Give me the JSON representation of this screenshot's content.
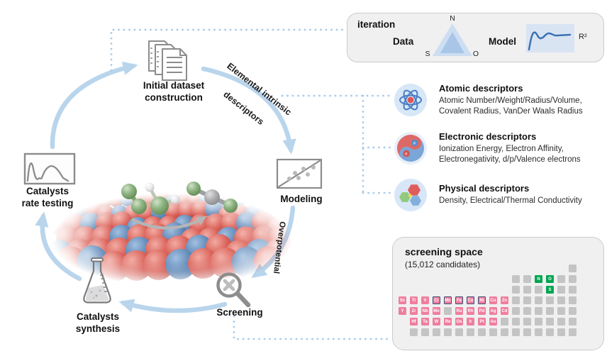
{
  "colors": {
    "arrow_blue": "#b9d5ec",
    "dotted_blue": "#a6c9e8",
    "panel_bg": "#f0f0f1",
    "pink_cell": "#ef7e9e",
    "green_cell": "#00a551",
    "grey_cell": "#c4c4c4",
    "outline_navy": "#3d4f74"
  },
  "cycle": {
    "initial_dataset": {
      "line1": "Initial dataset",
      "line2": "construction"
    },
    "modeling": {
      "label": "Modeling"
    },
    "screening": {
      "label": "Screening"
    },
    "synthesis": {
      "line1": "Catalysts",
      "line2": "synthesis"
    },
    "rate_testing": {
      "line1": "Catalysts",
      "line2": "rate testing"
    },
    "edge_to_modeling_line1": "Elemental intrinsic",
    "edge_to_modeling_line2": "descriptors",
    "edge_to_screening": "Overpotential"
  },
  "iteration_box": {
    "title": "iteration",
    "data_label": "Data",
    "model_label": "Model",
    "triangle_top": "N",
    "triangle_bottom_left": "S",
    "triangle_bottom_right": "O",
    "r2_label": "R²"
  },
  "descriptors": [
    {
      "icon": "atom-icon",
      "title": "Atomic descriptors",
      "line1": "Atomic Number/Weight/Radius/Volume,",
      "line2": "Covalent Radius, VanDer Waals Radius"
    },
    {
      "icon": "electrons-icon",
      "title": "Electronic descriptors",
      "line1": "Ionization Energy, Electron Affinity,",
      "line2": "Electronegativity, d/p/Valence electrons"
    },
    {
      "icon": "hexagons-icon",
      "title": "Physical descriptors",
      "line1": "Density, Electrical/Thermal Conductivity",
      "line2": ""
    }
  ],
  "screening_space": {
    "title": "screening space",
    "subtitle": "(15,012 candidates)",
    "cells": [
      {
        "row": 1,
        "col": 18,
        "kind": "grey"
      },
      {
        "row": 2,
        "col": 13,
        "kind": "grey"
      },
      {
        "row": 2,
        "col": 14,
        "kind": "grey"
      },
      {
        "row": 2,
        "col": 15,
        "kind": "green",
        "sym": "N"
      },
      {
        "row": 2,
        "col": 16,
        "kind": "green",
        "sym": "O"
      },
      {
        "row": 2,
        "col": 17,
        "kind": "grey"
      },
      {
        "row": 2,
        "col": 18,
        "kind": "grey"
      },
      {
        "row": 3,
        "col": 13,
        "kind": "grey"
      },
      {
        "row": 3,
        "col": 14,
        "kind": "grey"
      },
      {
        "row": 3,
        "col": 15,
        "kind": "grey"
      },
      {
        "row": 3,
        "col": 16,
        "kind": "green",
        "sym": "S"
      },
      {
        "row": 3,
        "col": 17,
        "kind": "grey"
      },
      {
        "row": 3,
        "col": 18,
        "kind": "grey"
      },
      {
        "row": 4,
        "col": 3,
        "kind": "pink",
        "sym": "Sc"
      },
      {
        "row": 4,
        "col": 4,
        "kind": "pink",
        "sym": "Ti"
      },
      {
        "row": 4,
        "col": 5,
        "kind": "pink",
        "sym": "V"
      },
      {
        "row": 4,
        "col": 6,
        "kind": "pink",
        "sym": "Cr",
        "outlined": true
      },
      {
        "row": 4,
        "col": 7,
        "kind": "pink",
        "sym": "Mn",
        "outlined": true
      },
      {
        "row": 4,
        "col": 8,
        "kind": "pink",
        "sym": "Fe",
        "outlined": true
      },
      {
        "row": 4,
        "col": 9,
        "kind": "pink",
        "sym": "Co",
        "outlined": true
      },
      {
        "row": 4,
        "col": 10,
        "kind": "pink",
        "sym": "Ni",
        "outlined": true
      },
      {
        "row": 4,
        "col": 11,
        "kind": "pink",
        "sym": "Cu"
      },
      {
        "row": 4,
        "col": 12,
        "kind": "pink",
        "sym": "Zn"
      },
      {
        "row": 4,
        "col": 13,
        "kind": "grey"
      },
      {
        "row": 4,
        "col": 14,
        "kind": "grey"
      },
      {
        "row": 4,
        "col": 15,
        "kind": "grey"
      },
      {
        "row": 4,
        "col": 16,
        "kind": "grey"
      },
      {
        "row": 4,
        "col": 17,
        "kind": "grey"
      },
      {
        "row": 4,
        "col": 18,
        "kind": "grey"
      },
      {
        "row": 5,
        "col": 3,
        "kind": "pink",
        "sym": "Y"
      },
      {
        "row": 5,
        "col": 4,
        "kind": "pink",
        "sym": "Zr"
      },
      {
        "row": 5,
        "col": 5,
        "kind": "pink",
        "sym": "Nb"
      },
      {
        "row": 5,
        "col": 6,
        "kind": "pink",
        "sym": "Mo"
      },
      {
        "row": 5,
        "col": 7,
        "kind": "grey"
      },
      {
        "row": 5,
        "col": 8,
        "kind": "pink",
        "sym": "Ru"
      },
      {
        "row": 5,
        "col": 9,
        "kind": "pink",
        "sym": "Rh"
      },
      {
        "row": 5,
        "col": 10,
        "kind": "pink",
        "sym": "Pd"
      },
      {
        "row": 5,
        "col": 11,
        "kind": "pink",
        "sym": "Ag"
      },
      {
        "row": 5,
        "col": 12,
        "kind": "pink",
        "sym": "Cd"
      },
      {
        "row": 5,
        "col": 13,
        "kind": "grey"
      },
      {
        "row": 5,
        "col": 14,
        "kind": "grey"
      },
      {
        "row": 5,
        "col": 15,
        "kind": "grey"
      },
      {
        "row": 5,
        "col": 16,
        "kind": "grey"
      },
      {
        "row": 5,
        "col": 17,
        "kind": "grey"
      },
      {
        "row": 5,
        "col": 18,
        "kind": "grey"
      },
      {
        "row": 6,
        "col": 4,
        "kind": "pink",
        "sym": "Hf"
      },
      {
        "row": 6,
        "col": 5,
        "kind": "pink",
        "sym": "Ta"
      },
      {
        "row": 6,
        "col": 6,
        "kind": "pink",
        "sym": "W"
      },
      {
        "row": 6,
        "col": 7,
        "kind": "pink",
        "sym": "Re"
      },
      {
        "row": 6,
        "col": 8,
        "kind": "pink",
        "sym": "Os"
      },
      {
        "row": 6,
        "col": 9,
        "kind": "pink",
        "sym": "Ir"
      },
      {
        "row": 6,
        "col": 10,
        "kind": "pink",
        "sym": "Pt"
      },
      {
        "row": 6,
        "col": 11,
        "kind": "pink",
        "sym": "Au"
      },
      {
        "row": 6,
        "col": 12,
        "kind": "grey"
      },
      {
        "row": 6,
        "col": 13,
        "kind": "grey"
      },
      {
        "row": 6,
        "col": 14,
        "kind": "grey"
      },
      {
        "row": 6,
        "col": 15,
        "kind": "grey"
      },
      {
        "row": 6,
        "col": 16,
        "kind": "grey"
      },
      {
        "row": 6,
        "col": 17,
        "kind": "grey"
      },
      {
        "row": 6,
        "col": 18,
        "kind": "grey"
      },
      {
        "row": 7,
        "col": 4,
        "kind": "grey"
      },
      {
        "row": 7,
        "col": 5,
        "kind": "grey"
      },
      {
        "row": 7,
        "col": 6,
        "kind": "grey"
      },
      {
        "row": 7,
        "col": 7,
        "kind": "grey"
      },
      {
        "row": 7,
        "col": 8,
        "kind": "grey"
      },
      {
        "row": 7,
        "col": 9,
        "kind": "grey"
      },
      {
        "row": 7,
        "col": 10,
        "kind": "grey"
      },
      {
        "row": 7,
        "col": 11,
        "kind": "grey"
      },
      {
        "row": 7,
        "col": 12,
        "kind": "grey"
      },
      {
        "row": 7,
        "col": 13,
        "kind": "grey"
      },
      {
        "row": 7,
        "col": 14,
        "kind": "grey"
      },
      {
        "row": 7,
        "col": 15,
        "kind": "grey"
      },
      {
        "row": 7,
        "col": 16,
        "kind": "grey"
      },
      {
        "row": 7,
        "col": 17,
        "kind": "grey"
      },
      {
        "row": 7,
        "col": 18,
        "kind": "grey"
      }
    ]
  }
}
